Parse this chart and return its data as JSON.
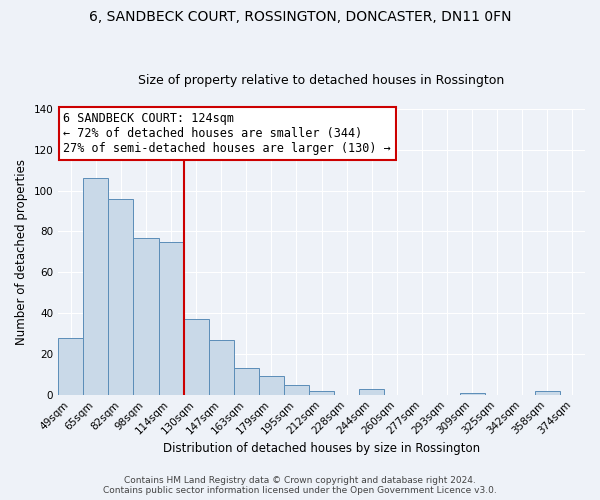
{
  "title": "6, SANDBECK COURT, ROSSINGTON, DONCASTER, DN11 0FN",
  "subtitle": "Size of property relative to detached houses in Rossington",
  "xlabel": "Distribution of detached houses by size in Rossington",
  "ylabel": "Number of detached properties",
  "bin_labels": [
    "49sqm",
    "65sqm",
    "82sqm",
    "98sqm",
    "114sqm",
    "130sqm",
    "147sqm",
    "163sqm",
    "179sqm",
    "195sqm",
    "212sqm",
    "228sqm",
    "244sqm",
    "260sqm",
    "277sqm",
    "293sqm",
    "309sqm",
    "325sqm",
    "342sqm",
    "358sqm",
    "374sqm"
  ],
  "bar_heights": [
    28,
    106,
    96,
    77,
    75,
    37,
    27,
    13,
    9,
    5,
    2,
    0,
    3,
    0,
    0,
    0,
    1,
    0,
    0,
    2,
    0
  ],
  "bar_color": "#c9d9e8",
  "bar_edgecolor": "#5b8db8",
  "vline_color": "#cc0000",
  "vline_x_index": 5,
  "annotation_text_line1": "6 SANDBECK COURT: 124sqm",
  "annotation_text_line2": "← 72% of detached houses are smaller (344)",
  "annotation_text_line3": "27% of semi-detached houses are larger (130) →",
  "annotation_box_color": "#cc0000",
  "ylim": [
    0,
    140
  ],
  "yticks": [
    0,
    20,
    40,
    60,
    80,
    100,
    120,
    140
  ],
  "footer_text": "Contains HM Land Registry data © Crown copyright and database right 2024.\nContains public sector information licensed under the Open Government Licence v3.0.",
  "background_color": "#eef2f8",
  "grid_color": "#ffffff",
  "title_fontsize": 10,
  "subtitle_fontsize": 9,
  "axis_label_fontsize": 8.5,
  "tick_fontsize": 7.5,
  "annotation_fontsize": 8.5,
  "footer_fontsize": 6.5
}
